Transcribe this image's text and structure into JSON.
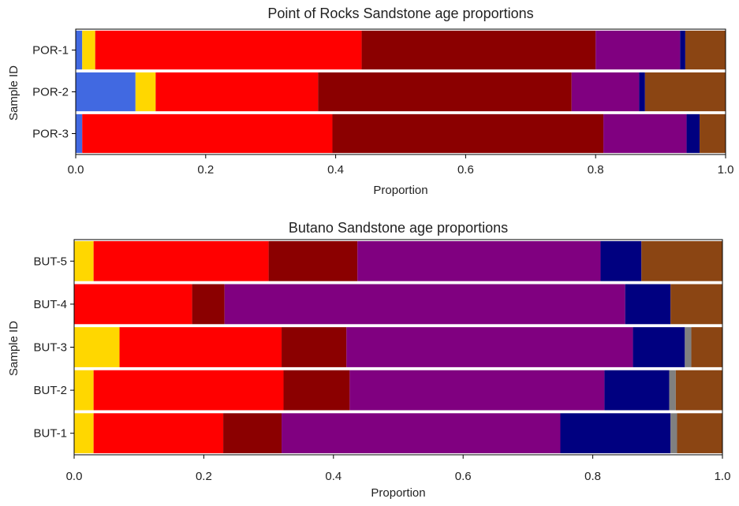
{
  "colors": {
    "royalblue": "#4169E1",
    "gold": "#FFD700",
    "red": "#FF0000",
    "darkred": "#8B0000",
    "purple": "#800080",
    "navy": "#000080",
    "gray": "#808080",
    "saddlebrown": "#8B4513"
  },
  "chart_data": [
    {
      "type": "bar",
      "orientation": "horizontal",
      "stacked": true,
      "title": "Point of Rocks Sandstone age proportions",
      "xlabel": "Proportion",
      "ylabel": "Sample ID",
      "xlim": [
        0,
        1
      ],
      "xticks": [
        "0.0",
        "0.2",
        "0.4",
        "0.6",
        "0.8",
        "1.0"
      ],
      "categories": [
        "POR-1",
        "POR-2",
        "POR-3"
      ],
      "segment_colors": [
        "#4169E1",
        "#FFD700",
        "#FF0000",
        "#8B0000",
        "#800080",
        "#000080",
        "#808080",
        "#8B4513"
      ],
      "values": [
        [
          0.01,
          0.02,
          0.41,
          0.36,
          0.13,
          0.008,
          0.0,
          0.062
        ],
        [
          0.092,
          0.031,
          0.25,
          0.39,
          0.104,
          0.009,
          0.0,
          0.124
        ],
        [
          0.01,
          0.0,
          0.385,
          0.417,
          0.128,
          0.02,
          0.0,
          0.04
        ]
      ]
    },
    {
      "type": "bar",
      "orientation": "horizontal",
      "stacked": true,
      "title": "Butano Sandstone age proportions",
      "xlabel": "Proportion",
      "ylabel": "Sample ID",
      "xlim": [
        0,
        1
      ],
      "xticks": [
        "0.0",
        "0.2",
        "0.4",
        "0.6",
        "0.8",
        "1.0"
      ],
      "categories": [
        "BUT-5",
        "BUT-4",
        "BUT-3",
        "BUT-2",
        "BUT-1"
      ],
      "segment_colors": [
        "#4169E1",
        "#FFD700",
        "#FF0000",
        "#8B0000",
        "#800080",
        "#000080",
        "#808080",
        "#8B4513"
      ],
      "values": [
        [
          0.0,
          0.03,
          0.27,
          0.137,
          0.375,
          0.063,
          0.0,
          0.125
        ],
        [
          0.0,
          0.0,
          0.182,
          0.05,
          0.618,
          0.07,
          0.0,
          0.08
        ],
        [
          0.0,
          0.07,
          0.25,
          0.1,
          0.442,
          0.08,
          0.01,
          0.048
        ],
        [
          0.0,
          0.03,
          0.293,
          0.102,
          0.393,
          0.1,
          0.01,
          0.072
        ],
        [
          0.0,
          0.03,
          0.2,
          0.09,
          0.43,
          0.17,
          0.01,
          0.07
        ]
      ]
    }
  ]
}
